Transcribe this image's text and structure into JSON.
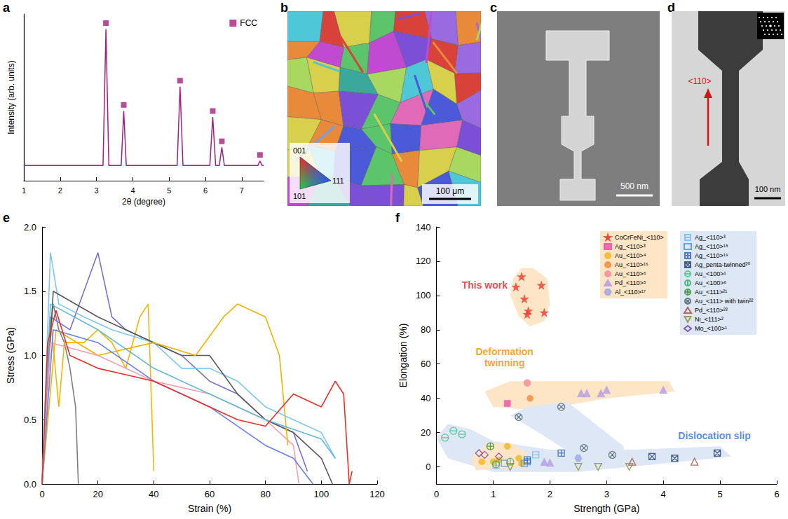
{
  "chart_data": [
    {
      "panel": "a",
      "type": "line",
      "x_label": "2θ (degree)",
      "y_label": "Intensity (arb. units)",
      "xlim": [
        1,
        7.6
      ],
      "xticks": [
        1,
        2,
        3,
        4,
        5,
        6,
        7
      ],
      "ylim": [
        0,
        1.1
      ],
      "tick_labels": "x",
      "grid": false,
      "legend": "top-right",
      "series": [
        {
          "type": "line",
          "color": "#a3207f",
          "x": [
            1,
            3.18,
            3.26,
            3.34,
            3.68,
            3.75,
            3.82,
            5.22,
            5.3,
            5.38,
            6.12,
            6.2,
            6.28,
            6.38,
            6.45,
            6.52,
            7.44,
            7.5,
            7.56,
            7.6
          ],
          "values": [
            0.1,
            0.1,
            1.0,
            0.1,
            0.1,
            0.46,
            0.1,
            0.1,
            0.62,
            0.1,
            0.1,
            0.42,
            0.1,
            0.1,
            0.22,
            0.1,
            0.1,
            0.13,
            0.1,
            0.1
          ]
        },
        {
          "name": "FCC",
          "type": "scatter",
          "marker": "square",
          "color": "#a3207f",
          "x": [
            3.26,
            3.75,
            5.3,
            6.2,
            6.45,
            7.5
          ],
          "values": [
            1.04,
            0.5,
            0.66,
            0.46,
            0.26,
            0.17
          ]
        }
      ]
    },
    {
      "panel": "e",
      "type": "line",
      "x_label": "Strain (%)",
      "y_label": "Stress (GPa)",
      "xlim": [
        0,
        120
      ],
      "xticks": [
        0,
        20,
        40,
        60,
        80,
        100,
        120
      ],
      "ylim": [
        0,
        2
      ],
      "yticks": [
        {
          "value": 0,
          "label": "0.0"
        },
        0.5,
        {
          "value": 1,
          "label": "1.0"
        },
        1.5,
        {
          "value": 2,
          "label": "2.0"
        }
      ],
      "grid": false,
      "series": [
        {
          "color": "#7f7f7f",
          "x": [
            0,
            2,
            4,
            6,
            8,
            10,
            12,
            13
          ],
          "values": [
            0,
            1.0,
            1.4,
            1.2,
            1.1,
            0.9,
            0.6,
            0
          ]
        },
        {
          "color": "#f2b705",
          "x": [
            0,
            3,
            6,
            8,
            15,
            20,
            25,
            30,
            35,
            38,
            40
          ],
          "values": [
            0,
            1.3,
            0.6,
            1.1,
            1.1,
            1.2,
            1.1,
            0.9,
            1.3,
            1.4,
            0.1
          ]
        },
        {
          "color": "#7a6fd0",
          "x": [
            0,
            3,
            10,
            20,
            25,
            30,
            40,
            50,
            60,
            70,
            80,
            90,
            95
          ],
          "values": [
            0,
            1.3,
            1.2,
            1.8,
            1.3,
            1.2,
            1.1,
            1.0,
            0.8,
            0.7,
            0.5,
            0.4,
            0.1
          ]
        },
        {
          "color": "#7ec8f0",
          "x": [
            0,
            3,
            6,
            15,
            25,
            40,
            50,
            60,
            70,
            80,
            90,
            100,
            105
          ],
          "values": [
            0,
            1.8,
            1.4,
            1.3,
            1.2,
            1.1,
            0.9,
            0.9,
            0.8,
            0.6,
            0.5,
            0.4,
            0.2
          ]
        },
        {
          "color": "#5a5a5a",
          "x": [
            0,
            4,
            20,
            40,
            50,
            60,
            70,
            80,
            90,
            100,
            104
          ],
          "values": [
            0,
            1.5,
            1.3,
            1.1,
            1.0,
            1.0,
            0.7,
            0.5,
            0.4,
            0.2,
            0
          ]
        },
        {
          "color": "#f0b400",
          "x": [
            0,
            5,
            20,
            40,
            55,
            65,
            70,
            80,
            85,
            88
          ],
          "values": [
            0,
            1.2,
            1.0,
            1.1,
            1.0,
            1.3,
            1.4,
            1.3,
            1.0,
            0.3
          ]
        },
        {
          "color": "#f4a0b0",
          "x": [
            0,
            3,
            20,
            40,
            60,
            70,
            80,
            90,
            92
          ],
          "values": [
            0,
            1.1,
            1.0,
            0.8,
            0.7,
            0.6,
            0.5,
            0.3,
            0
          ]
        },
        {
          "color": "#6a7ff0",
          "x": [
            0,
            4,
            20,
            40,
            60,
            80,
            90,
            97
          ],
          "values": [
            0,
            1.2,
            1.1,
            0.8,
            0.6,
            0.3,
            0.2,
            0
          ]
        },
        {
          "color": "#62b8d8",
          "x": [
            0,
            3,
            20,
            40,
            60,
            80,
            100,
            105
          ],
          "values": [
            0,
            1.4,
            1.2,
            0.9,
            0.7,
            0.5,
            0.35,
            0.2
          ]
        },
        {
          "color": "#e8302a",
          "x": [
            0,
            2,
            5,
            10,
            20,
            30,
            40,
            50,
            60,
            70,
            80,
            90,
            100,
            105,
            108,
            110,
            111
          ],
          "values": [
            0,
            1.1,
            1.35,
            1.0,
            0.9,
            0.85,
            0.8,
            0.7,
            0.6,
            0.5,
            0.45,
            0.7,
            0.6,
            0.8,
            0.7,
            0,
            0.1
          ]
        }
      ]
    },
    {
      "panel": "f",
      "type": "scatter",
      "x_label": "Strength (GPa)",
      "y_label": "Elongation (%)",
      "xlim": [
        0,
        6
      ],
      "xticks": [
        0,
        1,
        2,
        3,
        4,
        5,
        6
      ],
      "ylim": [
        -10,
        140
      ],
      "yticks": [
        0,
        20,
        40,
        60,
        80,
        100,
        120,
        140
      ],
      "grid": false,
      "legend": "top-right",
      "regions": [
        {
          "color": "#fde5c6",
          "points": [
            [
              1.3,
              100
            ],
            [
              1.35,
              110
            ],
            [
              1.5,
              116
            ],
            [
              1.7,
              116
            ],
            [
              1.95,
              110
            ],
            [
              2.0,
              95
            ],
            [
              1.9,
              85
            ],
            [
              1.65,
              82
            ],
            [
              1.45,
              88
            ]
          ]
        },
        {
          "color": "#fde5c6",
          "points": [
            [
              0.85,
              44
            ],
            [
              1.3,
              50
            ],
            [
              2.5,
              50
            ],
            [
              4.1,
              50
            ],
            [
              4.2,
              44
            ],
            [
              3.0,
              40
            ],
            [
              1.8,
              33
            ],
            [
              1.0,
              35
            ]
          ]
        },
        {
          "color": "#dde7f5",
          "points": [
            [
              0,
              17
            ],
            [
              0.2,
              25
            ],
            [
              0.6,
              22
            ],
            [
              1.0,
              15
            ],
            [
              2.0,
              10
            ],
            [
              3.5,
              10
            ],
            [
              5.0,
              12
            ],
            [
              5.2,
              6
            ],
            [
              4.0,
              2
            ],
            [
              2.5,
              -3
            ],
            [
              1.0,
              -3
            ],
            [
              0.2,
              5
            ]
          ]
        },
        {
          "color": "#dde7f5",
          "points": [
            [
              1.3,
              30
            ],
            [
              1.6,
              35
            ],
            [
              2.3,
              38
            ],
            [
              3.3,
              12
            ],
            [
              3.3,
              5
            ],
            [
              2.5,
              5
            ],
            [
              1.9,
              18
            ]
          ]
        },
        {
          "color": "#fde5c6",
          "points": [
            [
              0.6,
              5
            ],
            [
              0.9,
              14
            ],
            [
              1.3,
              14
            ],
            [
              1.6,
              8
            ],
            [
              1.6,
              0
            ],
            [
              0.7,
              -2
            ]
          ]
        }
      ],
      "annotations": [
        {
          "text": "This work",
          "x": 0.85,
          "y": 106,
          "color": "#e02020"
        },
        {
          "text": "Deformation twinning",
          "x": 1.2,
          "y": 64,
          "color": "#f08c00"
        },
        {
          "text": "Dislocation slip",
          "x": 4.9,
          "y": 18,
          "color": "#2f6fd0"
        }
      ],
      "series": [
        {
          "name": "CoCrFeNi_<110>",
          "marker": "star",
          "color": "#e8392f",
          "x": [
            1.4,
            1.5,
            1.55,
            1.62,
            1.6,
            1.85,
            1.9
          ],
          "values": [
            105,
            111,
            98,
            91,
            89,
            106,
            90
          ]
        },
        {
          "name": "Ag_<110>³",
          "marker": "square",
          "color": "#e84fa8",
          "x": [
            1.25
          ],
          "values": [
            37
          ]
        },
        {
          "name": "Au_<110>⁴",
          "marker": "half-circle",
          "color": "#f2b61d",
          "x": [
            0.8,
            1.25,
            1.1,
            1.45,
            1.0,
            1.5
          ],
          "values": [
            3,
            12,
            4,
            5,
            3,
            2
          ]
        },
        {
          "name": "Au_<110>¹⁶",
          "marker": "half-circle",
          "color": "#f08a3c",
          "x": [
            1.65
          ],
          "values": [
            40
          ]
        },
        {
          "name": "Au_<110>⁶",
          "marker": "circle",
          "color": "#f28a9a",
          "x": [
            1.6
          ],
          "values": [
            49
          ]
        },
        {
          "name": "Pd_<110>⁵",
          "marker": "triangle",
          "color": "#b49be6",
          "x": [
            1.9,
            2.0,
            2.55,
            2.65,
            2.9,
            3.0,
            4.0
          ],
          "values": [
            3,
            2.5,
            43,
            43,
            43,
            45,
            45
          ]
        },
        {
          "name": "Al_<110>¹⁷",
          "marker": "hexagon",
          "color": "#9aa6e8",
          "x": [
            2.5
          ],
          "values": [
            5
          ]
        },
        {
          "name": "Ag_<110>³",
          "marker": "square-minus",
          "color": "#7ab8e6",
          "x": [
            1.75,
            1.05
          ],
          "values": [
            7,
            1
          ]
        },
        {
          "name": "Ag_<110>¹⁸",
          "marker": "square-open",
          "color": "#4a90d9",
          "x": [
            1.2,
            1.55,
            1.6
          ],
          "values": [
            2,
            2,
            3
          ]
        },
        {
          "name": "Ag_<110>¹⁹",
          "marker": "square-plus",
          "color": "#2f5fb3",
          "x": [
            1.6,
            2.2
          ],
          "values": [
            4,
            8
          ]
        },
        {
          "name": "Ag_penta-twinned²⁰",
          "marker": "square-cross",
          "color": "#1c3b6e",
          "x": [
            3.8,
            4.2,
            4.95
          ],
          "values": [
            6,
            5,
            8
          ]
        },
        {
          "name": "Au_<100>¹",
          "marker": "circle-minus",
          "color": "#3fc37a",
          "x": [
            0.15,
            0.3,
            0.45
          ],
          "values": [
            17,
            21,
            19
          ]
        },
        {
          "name": "Au_<100>⁶",
          "marker": "circle-bar",
          "color": "#2eaa5c",
          "x": [
            1.3,
            1.05
          ],
          "values": [
            3,
            1.5
          ]
        },
        {
          "name": "Au_<111>²¹",
          "marker": "circle-plus",
          "color": "#2e8b2e",
          "x": [
            0.95
          ],
          "values": [
            12
          ]
        },
        {
          "name": "Au_<111> with twin²²",
          "marker": "circle-cross",
          "color": "#4a6064",
          "x": [
            1.45,
            2.2,
            2.6,
            3.1
          ],
          "values": [
            29,
            35,
            11,
            7
          ]
        },
        {
          "name": "Pd_<110>²³",
          "marker": "triangle-open",
          "color": "#a0503c",
          "x": [
            3.45,
            4.55
          ],
          "values": [
            3,
            3
          ]
        },
        {
          "name": "Ni_<111>²",
          "marker": "triangle-down-open",
          "color": "#8a8a2a",
          "x": [
            1.3,
            2.5,
            2.85,
            3.4
          ],
          "values": [
            0,
            0,
            0,
            0
          ]
        },
        {
          "name": "Mo_<100>¹",
          "marker": "diamond-open",
          "color": "#6a3aa8",
          "x": [
            0.75,
            0.85,
            1.1
          ],
          "values": [
            8,
            7,
            6
          ]
        }
      ]
    }
  ],
  "images": [
    {
      "panel": "b",
      "type": "ebsd_map",
      "triangle_labels": [
        "001",
        "101",
        "111"
      ],
      "scale_bar": "100 μm"
    },
    {
      "panel": "c",
      "type": "sem_image",
      "scale_bar": "500 nm"
    },
    {
      "panel": "d",
      "type": "tem_image",
      "direction": "<110>",
      "scale_bar": "100 nm"
    }
  ]
}
